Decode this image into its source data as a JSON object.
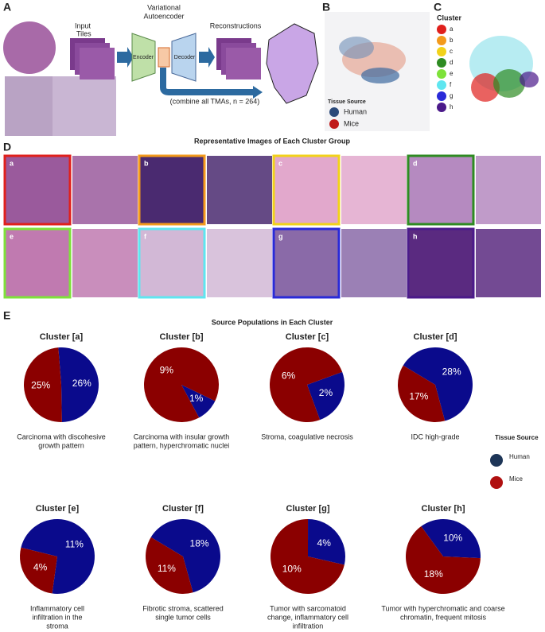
{
  "panel_a": {
    "label": "A",
    "input_tiles": [
      "Input",
      "Tiles"
    ],
    "vae": [
      "Variational",
      "Autoencoder"
    ],
    "encoder": "Encoder",
    "decoder": "Decoder",
    "reconstructions": "Reconstructions",
    "combine": "(combine all TMAs, n = 264)"
  },
  "panel_b": {
    "label": "B",
    "legend_title": "Tissue Source",
    "items": [
      {
        "name": "Human",
        "color": "#2b4a7a"
      },
      {
        "name": "Mice",
        "color": "#c01a1a"
      }
    ]
  },
  "panel_c": {
    "label": "C",
    "legend_title": "Cluster",
    "items": [
      {
        "name": "a",
        "color": "#e0201c"
      },
      {
        "name": "b",
        "color": "#f39a1c"
      },
      {
        "name": "c",
        "color": "#f2d21a"
      },
      {
        "name": "d",
        "color": "#2e8b22"
      },
      {
        "name": "e",
        "color": "#7ee23a"
      },
      {
        "name": "f",
        "color": "#5fe6f0"
      },
      {
        "name": "g",
        "color": "#2a2ad8"
      },
      {
        "name": "h",
        "color": "#4b1a8a"
      }
    ]
  },
  "panel_d": {
    "label": "D",
    "title": "Representative Images of Each Cluster Group"
  },
  "panel_e": {
    "label": "E",
    "title": "Source Populations in Each Cluster",
    "legend_title": "Tissue Source"
  },
  "chart_data": [
    {
      "type": "pie",
      "title": "Cluster [a]",
      "categories": [
        "Human",
        "Mice"
      ],
      "values": [
        26,
        25
      ],
      "value_labels": [
        "26%",
        "25%"
      ],
      "colors": [
        "#0a0a8c",
        "#8b0000"
      ],
      "caption": [
        "Carcinoma with discohesive",
        "growth pattern"
      ]
    },
    {
      "type": "pie",
      "title": "Cluster [b]",
      "categories": [
        "Human",
        "Mice"
      ],
      "values": [
        1,
        9
      ],
      "value_labels": [
        "1%",
        "9%"
      ],
      "colors": [
        "#0a0a8c",
        "#8b0000"
      ],
      "caption": [
        "Carcinoma with insular growth",
        "pattern, hyperchromatic nuclei"
      ]
    },
    {
      "type": "pie",
      "title": "Cluster [c]",
      "categories": [
        "Human",
        "Mice"
      ],
      "values": [
        2,
        6
      ],
      "value_labels": [
        "2%",
        "6%"
      ],
      "colors": [
        "#0a0a8c",
        "#8b0000"
      ],
      "caption": [
        "Stroma, coagulative necrosis"
      ]
    },
    {
      "type": "pie",
      "title": "Cluster [d]",
      "categories": [
        "Human",
        "Mice"
      ],
      "values": [
        28,
        17
      ],
      "value_labels": [
        "28%",
        "17%"
      ],
      "colors": [
        "#0a0a8c",
        "#8b0000"
      ],
      "caption": [
        "IDC high-grade"
      ]
    },
    {
      "type": "pie",
      "title": "Cluster [e]",
      "categories": [
        "Human",
        "Mice"
      ],
      "values": [
        11,
        4
      ],
      "value_labels": [
        "11%",
        "4%"
      ],
      "colors": [
        "#0a0a8c",
        "#8b0000"
      ],
      "caption": [
        "Inflammatory cell",
        "infiltration in the",
        "stroma"
      ]
    },
    {
      "type": "pie",
      "title": "Cluster [f]",
      "categories": [
        "Human",
        "Mice"
      ],
      "values": [
        18,
        11
      ],
      "value_labels": [
        "18%",
        "11%"
      ],
      "colors": [
        "#0a0a8c",
        "#8b0000"
      ],
      "caption": [
        "Fibrotic stroma, scattered",
        "single tumor cells"
      ]
    },
    {
      "type": "pie",
      "title": "Cluster [g]",
      "categories": [
        "Human",
        "Mice"
      ],
      "values": [
        4,
        10
      ],
      "value_labels": [
        "4%",
        "10%"
      ],
      "colors": [
        "#0a0a8c",
        "#8b0000"
      ],
      "caption": [
        "Tumor with sarcomatoid",
        "change, inflammatory cell",
        "infiltration"
      ]
    },
    {
      "type": "pie",
      "title": "Cluster [h]",
      "categories": [
        "Human",
        "Mice"
      ],
      "values": [
        10,
        18
      ],
      "value_labels": [
        "10%",
        "18%"
      ],
      "colors": [
        "#0a0a8c",
        "#8b0000"
      ],
      "caption": [
        "Tumor with hyperchromatic and coarse",
        "chromatin, frequent mitosis"
      ]
    }
  ]
}
